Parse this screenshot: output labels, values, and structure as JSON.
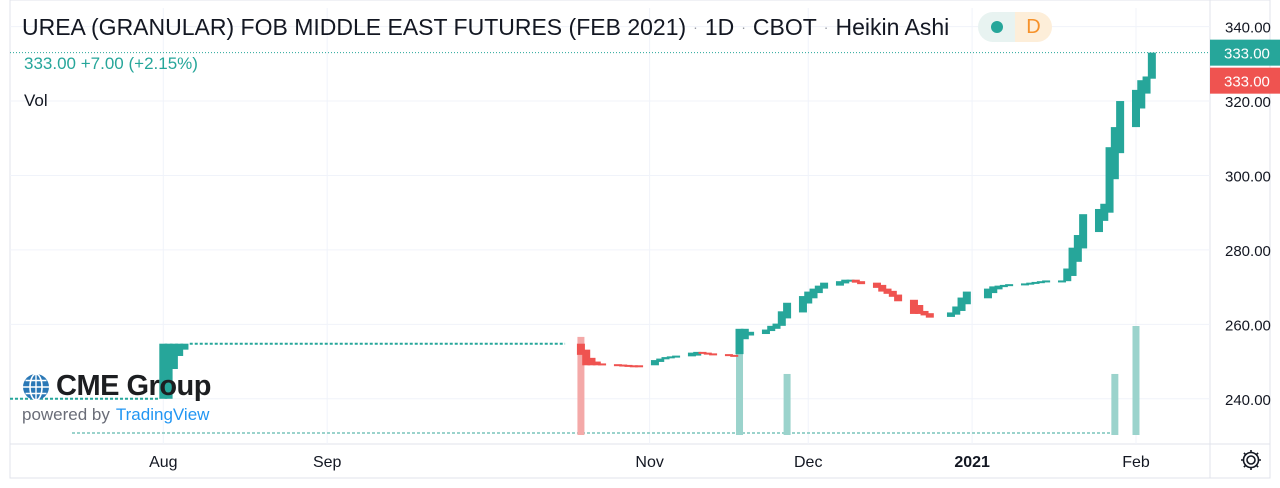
{
  "header": {
    "symbol": "UREA (GRANULAR) FOB MIDDLE EAST FUTURES (FEB 2021)",
    "interval": "1D",
    "exchange": "CBOT",
    "chart_style": "Heikin Ashi",
    "separator": "·",
    "delay_badge": "D"
  },
  "quote": {
    "last": "333.00",
    "change": "+7.00",
    "change_pct": "(+2.15%)"
  },
  "indicators": {
    "volume_label": "Vol"
  },
  "branding": {
    "logo": "CME Group",
    "powered_by": "powered by",
    "platform": "TradingView"
  },
  "price_axis": {
    "ticks": [
      "340.00",
      "320.00",
      "300.00",
      "280.00",
      "260.00",
      "240.00"
    ],
    "last_price_label": "333.00",
    "close_price_label": "333.00"
  },
  "time_axis": {
    "ticks": [
      "Aug",
      "Sep",
      "Nov",
      "Dec",
      "2021",
      "Feb"
    ]
  },
  "icons": {
    "settings": "gear-icon",
    "status": "status-dot-icon",
    "logo": "globe-icon"
  },
  "colors": {
    "up": "#26a69a",
    "down": "#ef5350",
    "up_volume": "#9bd3cc",
    "down_volume": "#f4a9a8",
    "axis_text": "#131722",
    "grid": "#f0f3fa"
  },
  "chart_data": {
    "type": "candlestick",
    "style": "Heikin Ashi",
    "ylim": [
      230,
      345
    ],
    "x_range": [
      "2020-07-03",
      "2021-02-15"
    ],
    "grid": true,
    "candles": [
      {
        "date": "2020-08-01",
        "open": 240.0,
        "close": 254.8,
        "dir": "up"
      },
      {
        "date": "2020-08-02",
        "open": 240.0,
        "close": 254.8,
        "dir": "up"
      },
      {
        "date": "2020-08-03",
        "open": 248.0,
        "close": 254.8,
        "dir": "up"
      },
      {
        "date": "2020-08-04",
        "open": 251.5,
        "close": 254.8,
        "dir": "up"
      },
      {
        "date": "2020-08-05",
        "open": 253.2,
        "close": 254.8,
        "dir": "up"
      },
      {
        "date": "2020-10-19",
        "open": 254.8,
        "close": 251.8,
        "dir": "down"
      },
      {
        "date": "2020-10-20",
        "open": 253.2,
        "close": 249.0,
        "dir": "down"
      },
      {
        "date": "2020-10-21",
        "open": 251.0,
        "close": 249.0,
        "dir": "down"
      },
      {
        "date": "2020-10-22",
        "open": 250.0,
        "close": 249.0,
        "dir": "down"
      },
      {
        "date": "2020-10-23",
        "open": 249.5,
        "close": 249.0,
        "dir": "down"
      },
      {
        "date": "2020-10-26",
        "open": 249.3,
        "close": 249.0,
        "dir": "down"
      },
      {
        "date": "2020-10-27",
        "open": 249.2,
        "close": 249.0,
        "dir": "down"
      },
      {
        "date": "2020-10-28",
        "open": 249.1,
        "close": 248.9,
        "dir": "down"
      },
      {
        "date": "2020-10-29",
        "open": 249.0,
        "close": 248.9,
        "dir": "down"
      },
      {
        "date": "2020-10-30",
        "open": 249.0,
        "close": 248.9,
        "dir": "down"
      },
      {
        "date": "2020-11-02",
        "open": 249.0,
        "close": 250.4,
        "dir": "up"
      },
      {
        "date": "2020-11-03",
        "open": 249.9,
        "close": 250.8,
        "dir": "up"
      },
      {
        "date": "2020-11-04",
        "open": 250.6,
        "close": 251.2,
        "dir": "up"
      },
      {
        "date": "2020-11-05",
        "open": 250.9,
        "close": 251.4,
        "dir": "up"
      },
      {
        "date": "2020-11-06",
        "open": 251.2,
        "close": 251.6,
        "dir": "up"
      },
      {
        "date": "2020-11-09",
        "open": 251.4,
        "close": 252.4,
        "dir": "up"
      },
      {
        "date": "2020-11-10",
        "open": 251.6,
        "close": 252.6,
        "dir": "up"
      },
      {
        "date": "2020-11-11",
        "open": 252.6,
        "close": 252.2,
        "dir": "down"
      },
      {
        "date": "2020-11-12",
        "open": 252.4,
        "close": 252.0,
        "dir": "down"
      },
      {
        "date": "2020-11-13",
        "open": 252.2,
        "close": 251.8,
        "dir": "down"
      },
      {
        "date": "2020-11-16",
        "open": 252.0,
        "close": 251.6,
        "dir": "down"
      },
      {
        "date": "2020-11-17",
        "open": 251.8,
        "close": 251.6,
        "dir": "down"
      },
      {
        "date": "2020-11-18",
        "open": 252.0,
        "close": 258.8,
        "dir": "up"
      },
      {
        "date": "2020-11-19",
        "open": 256.0,
        "close": 258.8,
        "dir": "up"
      },
      {
        "date": "2020-11-20",
        "open": 257.0,
        "close": 258.0,
        "dir": "up"
      },
      {
        "date": "2020-11-23",
        "open": 257.4,
        "close": 258.6,
        "dir": "up"
      },
      {
        "date": "2020-11-24",
        "open": 258.2,
        "close": 259.6,
        "dir": "up"
      },
      {
        "date": "2020-11-25",
        "open": 258.8,
        "close": 260.2,
        "dir": "up"
      },
      {
        "date": "2020-11-26",
        "open": 259.6,
        "close": 263.5,
        "dir": "up"
      },
      {
        "date": "2020-11-27",
        "open": 261.6,
        "close": 265.8,
        "dir": "up"
      },
      {
        "date": "2020-11-30",
        "open": 263.2,
        "close": 267.6,
        "dir": "up"
      },
      {
        "date": "2020-12-01",
        "open": 265.6,
        "close": 268.8,
        "dir": "up"
      },
      {
        "date": "2020-12-02",
        "open": 267.0,
        "close": 269.6,
        "dir": "up"
      },
      {
        "date": "2020-12-03",
        "open": 268.4,
        "close": 270.4,
        "dir": "up"
      },
      {
        "date": "2020-12-04",
        "open": 269.6,
        "close": 271.2,
        "dir": "up"
      },
      {
        "date": "2020-12-07",
        "open": 270.4,
        "close": 271.6,
        "dir": "up"
      },
      {
        "date": "2020-12-08",
        "open": 271.0,
        "close": 272.0,
        "dir": "up"
      },
      {
        "date": "2020-12-09",
        "open": 271.6,
        "close": 272.0,
        "dir": "up"
      },
      {
        "date": "2020-12-10",
        "open": 272.0,
        "close": 271.2,
        "dir": "down"
      },
      {
        "date": "2020-12-11",
        "open": 271.6,
        "close": 270.8,
        "dir": "down"
      },
      {
        "date": "2020-12-14",
        "open": 271.2,
        "close": 269.8,
        "dir": "down"
      },
      {
        "date": "2020-12-15",
        "open": 270.6,
        "close": 268.8,
        "dir": "down"
      },
      {
        "date": "2020-12-16",
        "open": 269.6,
        "close": 268.2,
        "dir": "down"
      },
      {
        "date": "2020-12-17",
        "open": 269.0,
        "close": 267.4,
        "dir": "down"
      },
      {
        "date": "2020-12-18",
        "open": 268.0,
        "close": 266.2,
        "dir": "down"
      },
      {
        "date": "2020-12-21",
        "open": 266.6,
        "close": 262.8,
        "dir": "down"
      },
      {
        "date": "2020-12-22",
        "open": 265.2,
        "close": 262.8,
        "dir": "down"
      },
      {
        "date": "2020-12-23",
        "open": 263.6,
        "close": 262.4,
        "dir": "down"
      },
      {
        "date": "2020-12-24",
        "open": 263.0,
        "close": 261.8,
        "dir": "down"
      },
      {
        "date": "2020-12-28",
        "open": 262.0,
        "close": 263.2,
        "dir": "up"
      },
      {
        "date": "2020-12-29",
        "open": 262.6,
        "close": 264.8,
        "dir": "up"
      },
      {
        "date": "2020-12-30",
        "open": 263.6,
        "close": 267.2,
        "dir": "up"
      },
      {
        "date": "2020-12-31",
        "open": 265.4,
        "close": 268.8,
        "dir": "up"
      },
      {
        "date": "2021-01-04",
        "open": 267.0,
        "close": 269.6,
        "dir": "up"
      },
      {
        "date": "2021-01-05",
        "open": 268.4,
        "close": 270.2,
        "dir": "up"
      },
      {
        "date": "2021-01-06",
        "open": 269.4,
        "close": 270.4,
        "dir": "up"
      },
      {
        "date": "2021-01-07",
        "open": 270.0,
        "close": 270.6,
        "dir": "up"
      },
      {
        "date": "2021-01-08",
        "open": 270.3,
        "close": 270.8,
        "dir": "up"
      },
      {
        "date": "2021-01-11",
        "open": 270.5,
        "close": 271.0,
        "dir": "up"
      },
      {
        "date": "2021-01-12",
        "open": 270.7,
        "close": 271.2,
        "dir": "up"
      },
      {
        "date": "2021-01-13",
        "open": 270.9,
        "close": 271.4,
        "dir": "up"
      },
      {
        "date": "2021-01-14",
        "open": 271.1,
        "close": 271.6,
        "dir": "up"
      },
      {
        "date": "2021-01-15",
        "open": 271.3,
        "close": 271.8,
        "dir": "up"
      },
      {
        "date": "2021-01-18",
        "open": 271.5,
        "close": 271.8,
        "dir": "up"
      },
      {
        "date": "2021-01-19",
        "open": 271.6,
        "close": 275.0,
        "dir": "up"
      },
      {
        "date": "2021-01-20",
        "open": 273.0,
        "close": 280.6,
        "dir": "up"
      },
      {
        "date": "2021-01-21",
        "open": 276.8,
        "close": 284.0,
        "dir": "up"
      },
      {
        "date": "2021-01-22",
        "open": 280.4,
        "close": 289.6,
        "dir": "up"
      },
      {
        "date": "2021-01-25",
        "open": 284.8,
        "close": 291.0,
        "dir": "up"
      },
      {
        "date": "2021-01-26",
        "open": 287.8,
        "close": 292.4,
        "dir": "up"
      },
      {
        "date": "2021-01-27",
        "open": 290.0,
        "close": 307.6,
        "dir": "up"
      },
      {
        "date": "2021-01-28",
        "open": 299.0,
        "close": 313.0,
        "dir": "up"
      },
      {
        "date": "2021-01-29",
        "open": 306.0,
        "close": 320.0,
        "dir": "up"
      },
      {
        "date": "2021-02-01",
        "open": 313.0,
        "close": 323.0,
        "dir": "up"
      },
      {
        "date": "2021-02-02",
        "open": 318.0,
        "close": 325.6,
        "dir": "up"
      },
      {
        "date": "2021-02-03",
        "open": 322.0,
        "close": 326.6,
        "dir": "up"
      },
      {
        "date": "2021-02-04",
        "open": 326.0,
        "close": 333.0,
        "dir": "up"
      }
    ],
    "flat_segments": [
      {
        "from": "2020-07-03",
        "to": "2020-07-31",
        "value": 240.0,
        "dir": "up"
      },
      {
        "from": "2020-08-06",
        "to": "2020-10-16",
        "value": 254.8,
        "dir": "up"
      }
    ],
    "volume_bars": [
      {
        "date": "2020-10-19",
        "height": 0.9,
        "dir": "down"
      },
      {
        "date": "2020-11-18",
        "height": 0.9,
        "dir": "up"
      },
      {
        "date": "2020-11-27",
        "height": 0.56,
        "dir": "up"
      },
      {
        "date": "2021-01-28",
        "height": 0.56,
        "dir": "up"
      },
      {
        "date": "2021-02-01",
        "height": 1.0,
        "dir": "up"
      }
    ],
    "last_price": 333.0
  }
}
